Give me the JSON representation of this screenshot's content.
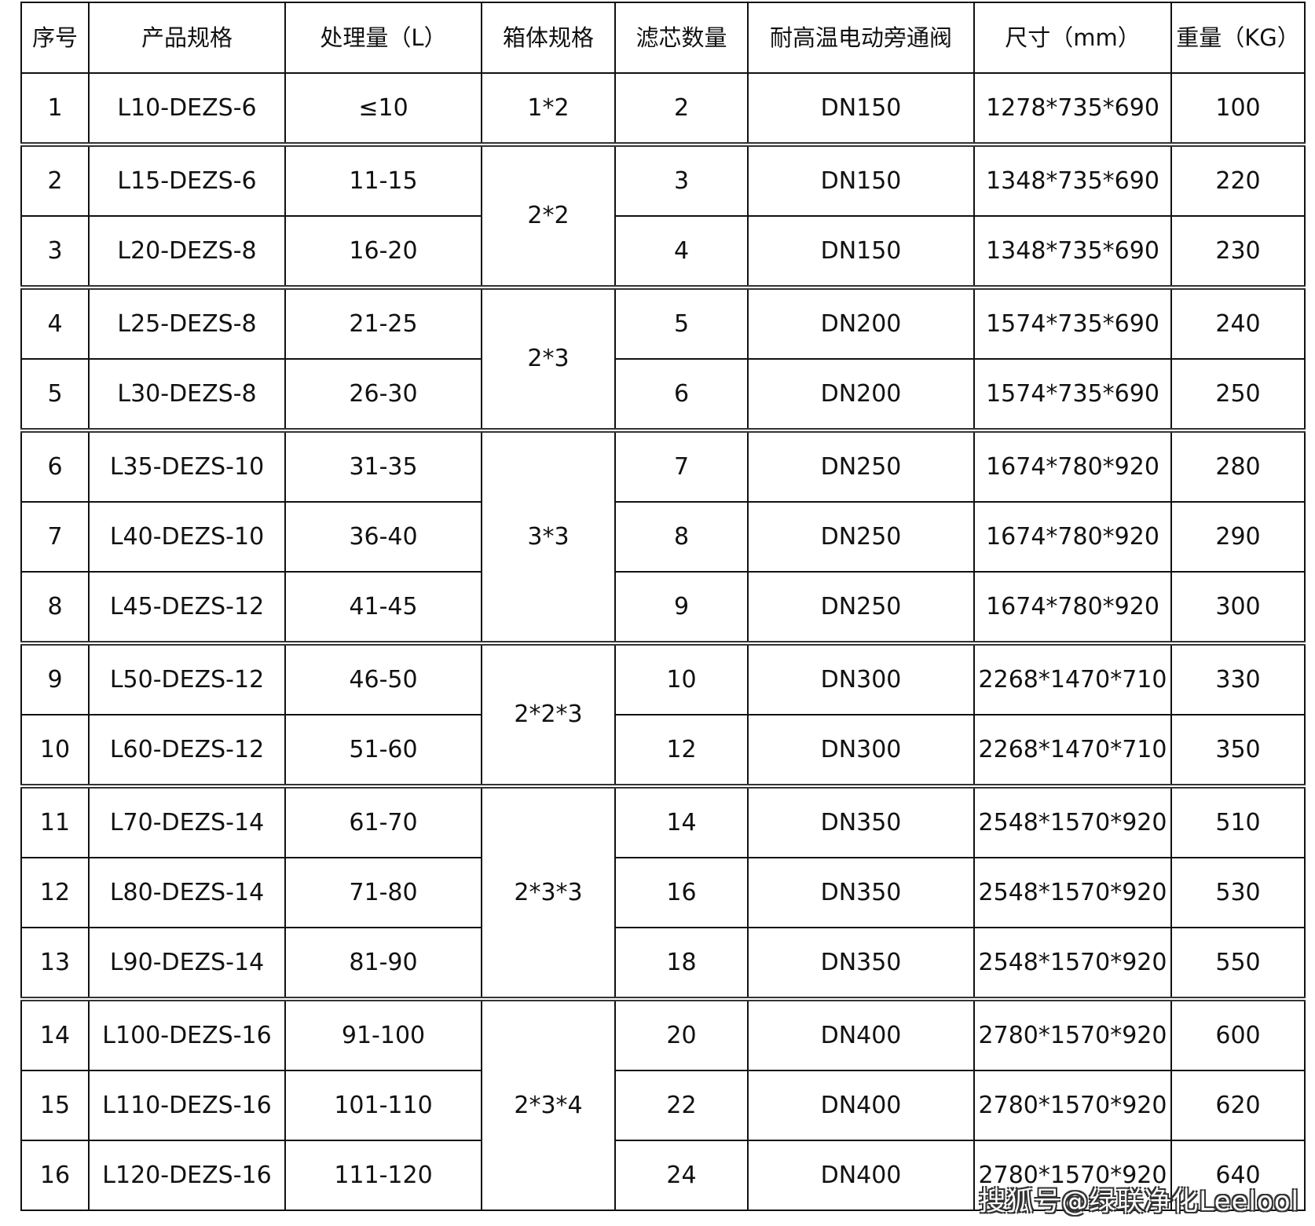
{
  "headers": [
    "序号",
    "产品规格",
    "处理量（L）",
    "箱体规格",
    "滤芯数量",
    "耐高温电动旁通阀",
    "尺寸（mm）",
    "重量（KG）"
  ],
  "groups": [
    {
      "box_spec": "1*2",
      "rows": [
        [
          "1",
          "L10-DEZS-6",
          "≤10",
          "2",
          "DN150",
          "1278*735*690",
          "100"
        ]
      ]
    },
    {
      "box_spec": "2*2",
      "rows": [
        [
          "2",
          "L15-DEZS-6",
          "11-15",
          "3",
          "DN150",
          "1348*735*690",
          "220"
        ],
        [
          "3",
          "L20-DEZS-8",
          "16-20",
          "4",
          "DN150",
          "1348*735*690",
          "230"
        ]
      ]
    },
    {
      "box_spec": "2*3",
      "rows": [
        [
          "4",
          "L25-DEZS-8",
          "21-25",
          "5",
          "DN200",
          "1574*735*690",
          "240"
        ],
        [
          "5",
          "L30-DEZS-8",
          "26-30",
          "6",
          "DN200",
          "1574*735*690",
          "250"
        ]
      ]
    },
    {
      "box_spec": "3*3",
      "rows": [
        [
          "6",
          "L35-DEZS-10",
          "31-35",
          "7",
          "DN250",
          "1674*780*920",
          "280"
        ],
        [
          "7",
          "L40-DEZS-10",
          "36-40",
          "8",
          "DN250",
          "1674*780*920",
          "290"
        ],
        [
          "8",
          "L45-DEZS-12",
          "41-45",
          "9",
          "DN250",
          "1674*780*920",
          "300"
        ]
      ]
    },
    {
      "box_spec": "2*2*3",
      "rows": [
        [
          "9",
          "L50-DEZS-12",
          "46-50",
          "10",
          "DN300",
          "2268*1470*710",
          "330"
        ],
        [
          "10",
          "L60-DEZS-12",
          "51-60",
          "12",
          "DN300",
          "2268*1470*710",
          "350"
        ]
      ]
    },
    {
      "box_spec": "2*3*3",
      "rows": [
        [
          "11",
          "L70-DEZS-14",
          "61-70",
          "14",
          "DN350",
          "2548*1570*920",
          "510"
        ],
        [
          "12",
          "L80-DEZS-14",
          "71-80",
          "16",
          "DN350",
          "2548*1570*920",
          "530"
        ],
        [
          "13",
          "L90-DEZS-14",
          "81-90",
          "18",
          "DN350",
          "2548*1570*920",
          "550"
        ]
      ]
    },
    {
      "box_spec": "2*3*4",
      "rows": [
        [
          "14",
          "L100-DEZS-16",
          "91-100",
          "20",
          "DN400",
          "2780*1570*920",
          "600"
        ],
        [
          "15",
          "L110-DEZS-16",
          "101-110",
          "22",
          "DN400",
          "2780*1570*920",
          "620"
        ],
        [
          "16",
          "L120-DEZS-16",
          "111-120",
          "24",
          "DN400",
          "2780*1570*920",
          "640"
        ]
      ]
    }
  ],
  "watermark": "搜狐号@绿联净化Leelool"
}
